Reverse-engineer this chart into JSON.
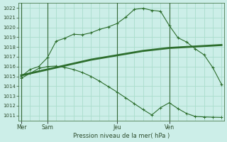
{
  "bg_color": "#cceee8",
  "grid_color": "#aaddcc",
  "line_color": "#2d6e2d",
  "xlabel_text": "Pression niveau de la mer( hPa )",
  "x_tick_labels": [
    "Mer",
    "Sam",
    "Jeu",
    "Ven"
  ],
  "x_tick_positions": [
    0,
    3,
    11,
    17
  ],
  "xlim": [
    -0.3,
    23.3
  ],
  "ylim": [
    1010.5,
    1022.5
  ],
  "yticks": [
    1011,
    1012,
    1013,
    1014,
    1015,
    1016,
    1017,
    1018,
    1019,
    1020,
    1021,
    1022
  ],
  "vlines": [
    0,
    3,
    11,
    17
  ],
  "line1_x": [
    0,
    1,
    2,
    3,
    4,
    5,
    6,
    7,
    8,
    9,
    10,
    11,
    12,
    13,
    14,
    15,
    16,
    17,
    18,
    19,
    20,
    21,
    22,
    23
  ],
  "line1_y": [
    1015.0,
    1015.7,
    1016.0,
    1016.9,
    1018.6,
    1018.9,
    1019.3,
    1019.25,
    1019.45,
    1019.8,
    1020.05,
    1020.4,
    1021.05,
    1021.85,
    1021.95,
    1021.75,
    1021.65,
    1020.2,
    1018.95,
    1018.5,
    1017.8,
    1017.2,
    1015.9,
    1014.2
  ],
  "line2_x": [
    0,
    1,
    2,
    3,
    4,
    5,
    6,
    7,
    8,
    9,
    10,
    11,
    12,
    13,
    14,
    15,
    16,
    17,
    18,
    19,
    20,
    21,
    22,
    23
  ],
  "line2_y": [
    1015.1,
    1015.3,
    1015.5,
    1015.7,
    1015.9,
    1016.1,
    1016.3,
    1016.5,
    1016.7,
    1016.85,
    1017.0,
    1017.15,
    1017.3,
    1017.45,
    1017.6,
    1017.7,
    1017.8,
    1017.9,
    1017.95,
    1018.0,
    1018.05,
    1018.1,
    1018.15,
    1018.2
  ],
  "line3_x": [
    0,
    1,
    2,
    3,
    4,
    5,
    6,
    7,
    8,
    9,
    10,
    11,
    12,
    13,
    14,
    15,
    16,
    17,
    18,
    19,
    20,
    21,
    22,
    23
  ],
  "line3_y": [
    1014.8,
    1015.3,
    1015.8,
    1016.0,
    1016.05,
    1015.9,
    1015.7,
    1015.4,
    1015.0,
    1014.5,
    1013.95,
    1013.4,
    1012.8,
    1012.2,
    1011.6,
    1011.05,
    1011.8,
    1012.3,
    1011.7,
    1011.2,
    1010.9,
    1010.85,
    1010.82,
    1010.8
  ]
}
